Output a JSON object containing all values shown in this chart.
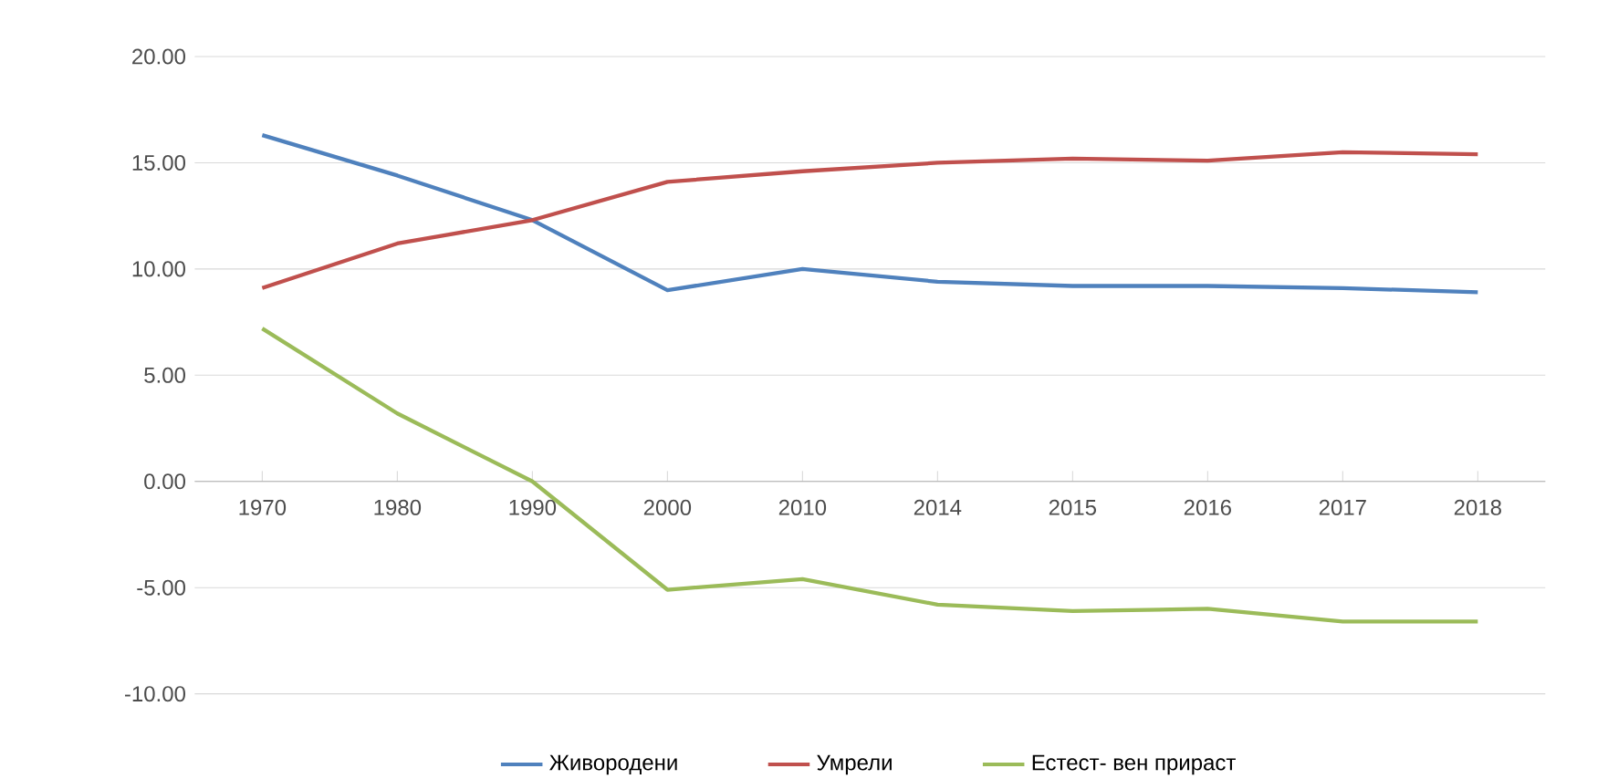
{
  "chart_data": {
    "type": "line",
    "categories": [
      "1970",
      "1980",
      "1990",
      "2000",
      "2010",
      "2014",
      "2015",
      "2016",
      "2017",
      "2018"
    ],
    "series": [
      {
        "name": "Живородени",
        "color": "#4f81bd",
        "values": [
          16.3,
          14.4,
          12.3,
          9.0,
          10.0,
          9.4,
          9.2,
          9.2,
          9.1,
          8.9
        ]
      },
      {
        "name": "Умрели",
        "color": "#c0504d",
        "values": [
          9.1,
          11.2,
          12.3,
          14.1,
          14.6,
          15.0,
          15.2,
          15.1,
          15.5,
          15.4
        ]
      },
      {
        "name": "Естест- вен прираст",
        "color": "#9bbb59",
        "values": [
          7.2,
          3.2,
          0.0,
          -5.1,
          -4.6,
          -5.8,
          -6.1,
          -6.0,
          -6.6,
          -6.6
        ]
      }
    ],
    "ylim": [
      -10,
      20
    ],
    "yticks": [
      {
        "value": -10,
        "label": "-10.00"
      },
      {
        "value": -5,
        "label": "-5.00"
      },
      {
        "value": 0,
        "label": "0.00"
      },
      {
        "value": 5,
        "label": "5.00"
      },
      {
        "value": 10,
        "label": "10.00"
      },
      {
        "value": 15,
        "label": "15.00"
      },
      {
        "value": 20,
        "label": "20.00"
      }
    ],
    "grid": "y",
    "legend": "bottom",
    "marker": "none",
    "line_style": "solid"
  }
}
